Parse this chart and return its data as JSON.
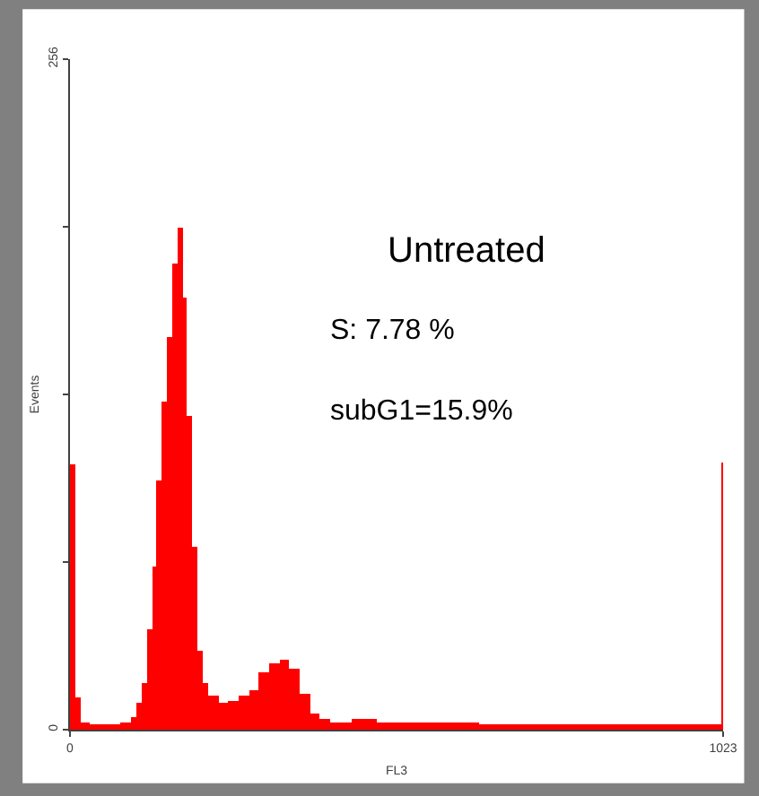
{
  "chart_data": {
    "type": "histogram",
    "xlabel": "FL3",
    "ylabel": "Events",
    "bins": [
      0,
      8,
      16,
      32,
      48,
      64,
      80,
      96,
      104,
      112,
      120,
      128,
      136,
      144,
      152,
      160,
      168,
      176,
      184,
      192,
      200,
      208,
      216,
      232,
      248,
      264,
      280,
      296,
      312,
      328,
      344,
      360,
      376,
      392,
      408,
      440,
      480,
      560,
      640,
      720,
      800,
      880,
      960,
      1016,
      1022,
      1024
    ],
    "values": [
      101,
      12,
      3,
      2,
      2,
      2,
      3,
      5,
      10,
      18,
      38,
      62,
      95,
      125,
      150,
      178,
      192,
      165,
      120,
      70,
      30,
      18,
      13,
      10,
      11,
      13,
      15,
      22,
      25,
      27,
      23,
      14,
      6,
      4,
      3,
      4,
      3,
      3,
      2,
      2,
      2,
      2,
      2,
      2,
      102
    ],
    "color": "#ff0000",
    "xlim": [
      0,
      1023
    ],
    "xticks": [
      0,
      1023
    ],
    "ylim": [
      0,
      256
    ],
    "yticks": [
      0,
      {
        "value": 64,
        "label": null
      },
      {
        "value": 128,
        "label": null
      },
      {
        "value": 192,
        "label": null
      },
      256
    ],
    "annotations": [
      "Untreated",
      "S: 7.78 %",
      "subG1=15.9%"
    ]
  }
}
